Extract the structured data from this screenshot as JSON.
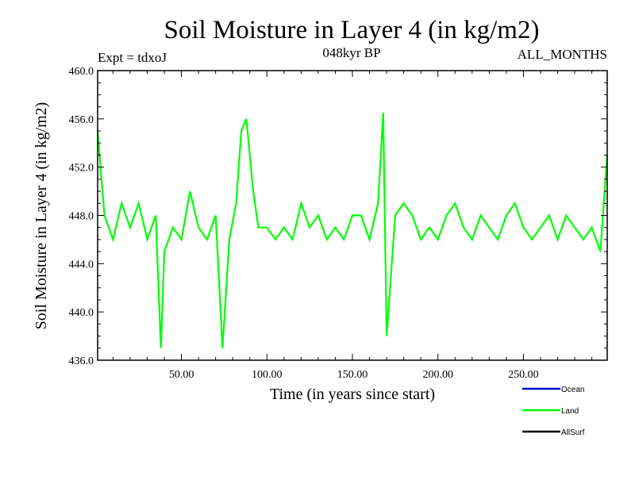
{
  "chart_data": {
    "type": "line",
    "title": "Soil Moisture in Layer 4 (in kg/m2)",
    "subtitle": "048kyr BP",
    "annotation_left": "Expt = tdxoJ",
    "annotation_right": "ALL_MONTHS",
    "xlabel": "Time (in years since start)",
    "ylabel": "Soil Moisture in Layer 4 (in kg/m2)",
    "xlim": [
      1,
      299
    ],
    "ylim": [
      436,
      460
    ],
    "x_ticks": [
      50,
      100,
      150,
      200,
      250
    ],
    "x_tick_labels": [
      "50.00",
      "100.00",
      "150.00",
      "200.00",
      "250.00"
    ],
    "y_ticks": [
      436,
      440,
      444,
      448,
      452,
      456,
      460
    ],
    "y_tick_labels": [
      "436.0",
      "440.0",
      "444.0",
      "448.0",
      "452.0",
      "456.0",
      "460.0"
    ],
    "series": [
      {
        "name": "Ocean",
        "color": "#0000cc",
        "values": []
      },
      {
        "name": "Land",
        "color": "#00ff00",
        "x": [
          1,
          5,
          10,
          15,
          20,
          25,
          30,
          35,
          38,
          40,
          45,
          50,
          55,
          60,
          65,
          70,
          74,
          78,
          82,
          85,
          88,
          92,
          95,
          100,
          105,
          110,
          115,
          120,
          125,
          130,
          135,
          140,
          145,
          150,
          155,
          160,
          165,
          168,
          170,
          175,
          180,
          185,
          190,
          195,
          200,
          205,
          210,
          215,
          220,
          225,
          230,
          235,
          240,
          245,
          250,
          255,
          260,
          265,
          270,
          275,
          280,
          285,
          290,
          295,
          299
        ],
        "values": [
          455,
          448,
          446,
          449,
          447,
          449,
          446,
          448,
          437,
          445,
          447,
          446,
          450,
          447,
          446,
          448,
          437,
          446,
          449,
          455,
          456,
          450,
          447,
          447,
          446,
          447,
          446,
          449,
          447,
          448,
          446,
          447,
          446,
          448,
          448,
          446,
          449,
          456.5,
          438,
          448,
          449,
          448,
          446,
          447,
          446,
          448,
          449,
          447,
          446,
          448,
          447,
          446,
          448,
          449,
          447,
          446,
          447,
          448,
          446,
          448,
          447,
          446,
          447,
          445,
          453
        ]
      },
      {
        "name": "AllSurf",
        "color": "#000000",
        "values": []
      }
    ],
    "legend": [
      "Ocean",
      "Land",
      "AllSurf"
    ],
    "legend_position": "bottom-right",
    "grid": false
  }
}
